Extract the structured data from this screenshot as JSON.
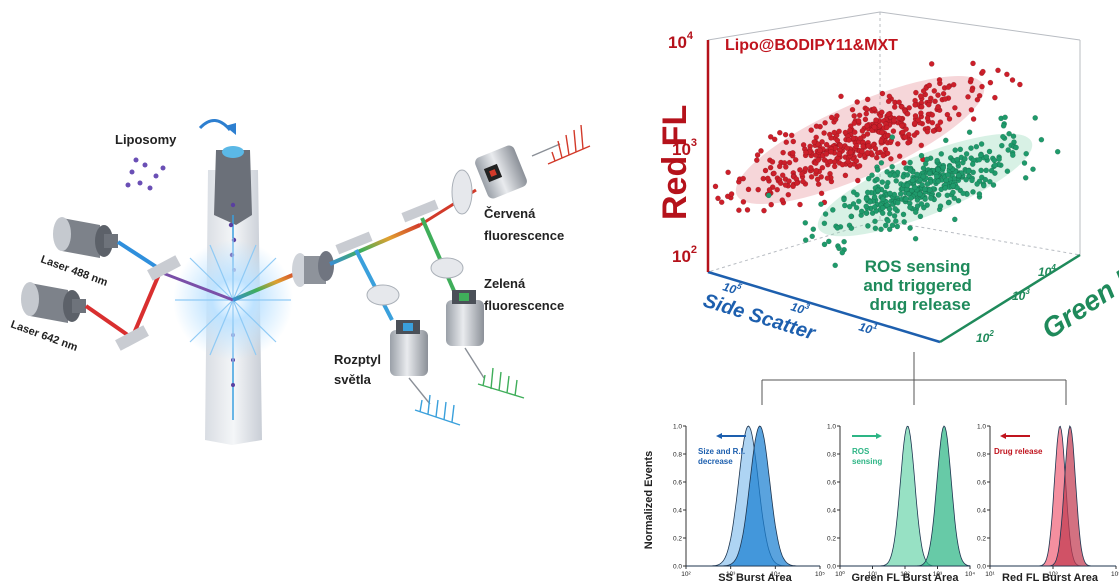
{
  "left_diagram": {
    "liposomes_label": "Liposomy",
    "laser_488_label": "Laser 488 nm",
    "laser_642_label": "Laser 642 nm",
    "red_fl_label": [
      "Červená",
      "fluorescence"
    ],
    "green_fl_label": [
      "Zelená",
      "fluorescence"
    ],
    "scatter_label": [
      "Rozptyl",
      "světla"
    ]
  },
  "scatter3d": {
    "title": "Lipo@BODIPY11&MXT",
    "z_label": "Red FL",
    "x_label": "Side Scatter",
    "y_label": "Green FL",
    "annotation": [
      "ROS sensing",
      "and triggered",
      "drug release"
    ],
    "z_ticks": [
      "10",
      "10",
      "10"
    ],
    "z_tick_exps": [
      "4",
      "3",
      "2"
    ],
    "x_ticks": [
      "10",
      "10",
      "10"
    ],
    "x_tick_exps": [
      "5",
      "3",
      "1"
    ],
    "y_ticks": [
      "10",
      "10",
      "10"
    ],
    "y_tick_exps": [
      "4",
      "3",
      "2"
    ],
    "colors": {
      "red": "#cc1f2a",
      "green": "#1f9a6b",
      "axis_red": "#b5121b",
      "axis_blue": "#1d5fae",
      "axis_green": "#1f8a5b"
    }
  },
  "chart_data": [
    {
      "type": "area",
      "ylabel": "Normalized Events",
      "xlabel": "SS Burst Area",
      "x_scale": "log",
      "xlim": [
        100,
        100000
      ],
      "ylim": [
        0,
        1.0
      ],
      "y_ticks": [
        "0.0",
        "0.2",
        "0.4",
        "0.6",
        "0.8",
        "1.0"
      ],
      "x_ticks": [
        "10²",
        "10³",
        "10⁴",
        "10⁵"
      ],
      "annotation": [
        "Size and R.I.",
        "decrease"
      ],
      "series": [
        {
          "color": "#8fc4ee",
          "peak_x": 2500,
          "peak_y": 1.0
        },
        {
          "color": "#1a7fd1",
          "peak_x": 4500,
          "peak_y": 1.0
        }
      ]
    },
    {
      "type": "area",
      "xlabel": "Green FL Burst Area",
      "x_scale": "log",
      "xlim": [
        1,
        10000
      ],
      "ylim": [
        0,
        1.0
      ],
      "y_ticks": [
        "0.0",
        "0.2",
        "0.4",
        "0.6",
        "0.8",
        "1.0"
      ],
      "x_ticks": [
        "10⁰",
        "10¹",
        "10²",
        "10³",
        "10⁴"
      ],
      "annotation": [
        "ROS",
        "sensing"
      ],
      "series": [
        {
          "color": "#6fd6ad",
          "peak_x": 120,
          "peak_y": 1.0
        },
        {
          "color": "#2db585",
          "peak_x": 1600,
          "peak_y": 1.0
        }
      ]
    },
    {
      "type": "area",
      "xlabel": "Red FL Burst Area",
      "x_scale": "log",
      "xlim": [
        1,
        100000
      ],
      "ylim": [
        0,
        1.0
      ],
      "y_ticks": [
        "0.0",
        "0.2",
        "0.4",
        "0.6",
        "0.8",
        "1.0"
      ],
      "x_ticks": [
        "10¹",
        "10³",
        "10⁵"
      ],
      "annotation": [
        "Drug release"
      ],
      "series": [
        {
          "color": "#f0647a",
          "peak_x": 600,
          "peak_y": 1.0
        },
        {
          "color": "#c23a50",
          "peak_x": 1500,
          "peak_y": 1.0
        }
      ]
    }
  ]
}
